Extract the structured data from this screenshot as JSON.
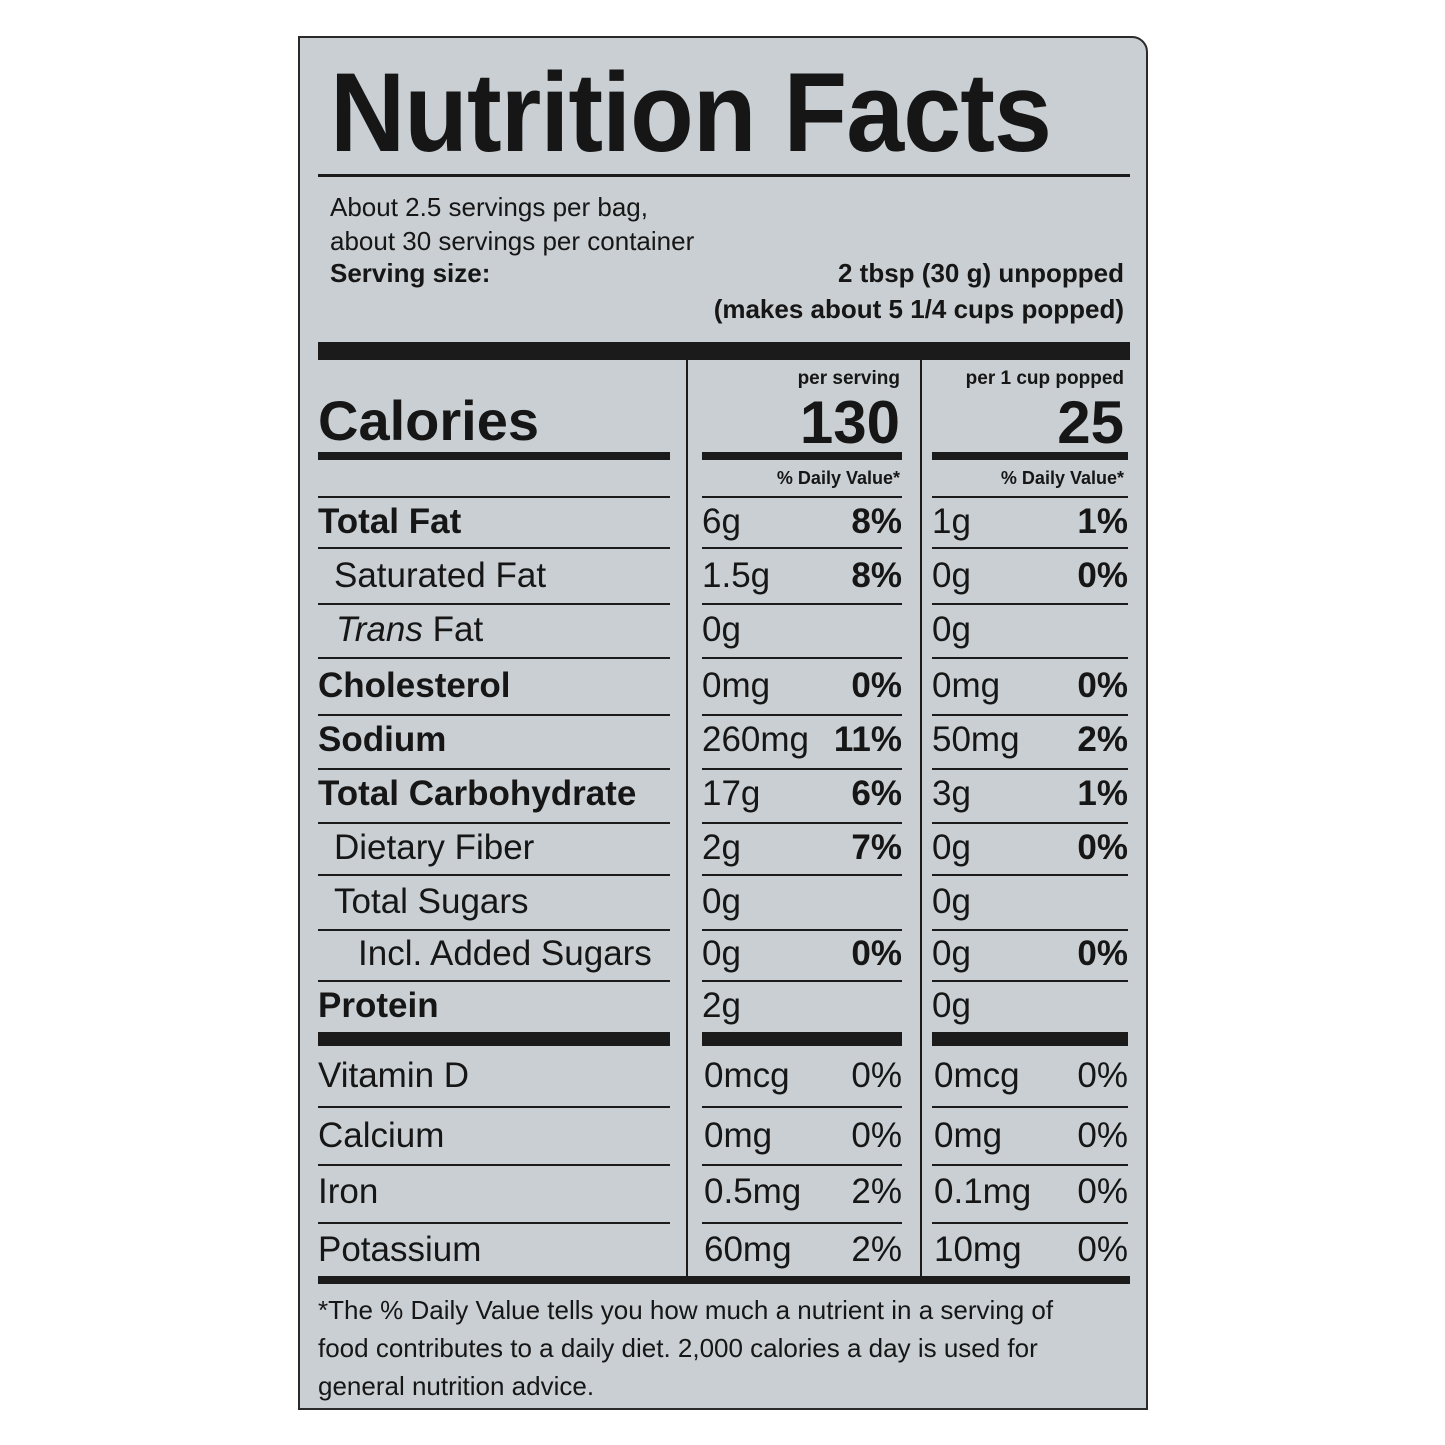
{
  "title": "Nutrition Facts",
  "servings": {
    "per_bag": "About 2.5 servings per bag,",
    "per_container": "about 30 servings per container",
    "serving_size_label": "Serving size:",
    "serving_size_value": "2 tbsp (30 g) unpopped",
    "serving_size_note": "(makes about 5 1/4 cups popped)"
  },
  "columns": {
    "per_serving": "per serving",
    "per_cup": "per 1 cup popped",
    "daily_value_header": "% Daily Value*"
  },
  "calories": {
    "label": "Calories",
    "per_serving": "130",
    "per_cup": "25"
  },
  "nutrients": [
    {
      "label": "Total Fat",
      "amount": "6g",
      "dv": "8%",
      "cup_amount": "1g",
      "cup_dv": "1%"
    },
    {
      "label": "Saturated Fat",
      "amount": "1.5g",
      "dv": "8%",
      "cup_amount": "0g",
      "cup_dv": "0%"
    },
    {
      "label_italic": "Trans",
      "label": " Fat",
      "amount": "0g",
      "dv": "",
      "cup_amount": "0g",
      "cup_dv": ""
    },
    {
      "label": "Cholesterol",
      "amount": "0mg",
      "dv": "0%",
      "cup_amount": "0mg",
      "cup_dv": "0%"
    },
    {
      "label": "Sodium",
      "amount": "260mg",
      "dv": "11%",
      "cup_amount": "50mg",
      "cup_dv": "2%"
    },
    {
      "label": "Total Carbohydrate",
      "amount": "17g",
      "dv": "6%",
      "cup_amount": "3g",
      "cup_dv": "1%"
    },
    {
      "label": "Dietary Fiber",
      "amount": "2g",
      "dv": "7%",
      "cup_amount": "0g",
      "cup_dv": "0%"
    },
    {
      "label": "Total Sugars",
      "amount": "0g",
      "dv": "",
      "cup_amount": "0g",
      "cup_dv": ""
    },
    {
      "label": "Incl. Added Sugars",
      "amount": "0g",
      "dv": "0%",
      "cup_amount": "0g",
      "cup_dv": "0%"
    },
    {
      "label": "Protein",
      "amount": "2g",
      "dv": "",
      "cup_amount": "0g",
      "cup_dv": ""
    }
  ],
  "vitamins": [
    {
      "label": "Vitamin D",
      "amount": "0mcg",
      "dv": "0%",
      "cup_amount": "0mcg",
      "cup_dv": "0%"
    },
    {
      "label": "Calcium",
      "amount": "0mg",
      "dv": "0%",
      "cup_amount": "0mg",
      "cup_dv": "0%"
    },
    {
      "label": "Iron",
      "amount": "0.5mg",
      "dv": "2%",
      "cup_amount": "0.1mg",
      "cup_dv": "0%"
    },
    {
      "label": "Potassium",
      "amount": "60mg",
      "dv": "2%",
      "cup_amount": "10mg",
      "cup_dv": "0%"
    }
  ],
  "footnote": [
    "*The % Daily Value tells you how much a nutrient in a serving of",
    "food contributes to a daily diet. 2,000 calories a day is used for",
    "general nutrition advice."
  ],
  "colors": {
    "panel": "#c9cfd2",
    "ink": "#161616"
  }
}
